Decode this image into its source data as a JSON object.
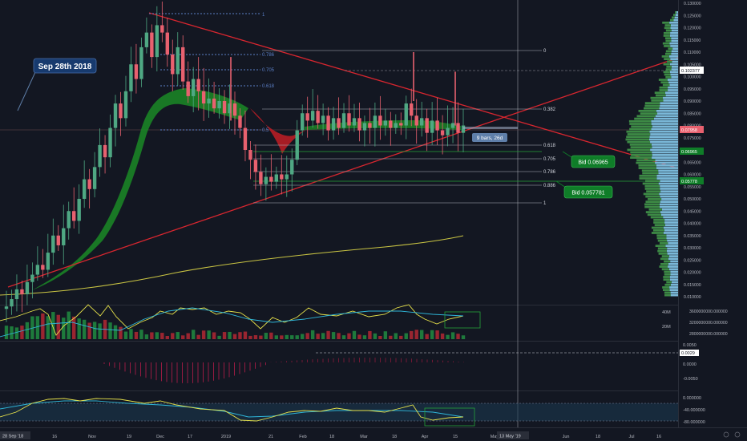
{
  "colors": {
    "background": "#131722",
    "up": "#4fa883",
    "down": "#e8616f",
    "trendline": "#d7262f",
    "fib": "#b2b5be",
    "fib_blue": "#5b7fc7",
    "ma_yellow": "#c9c443",
    "cloud_green": "#1b8a26",
    "cloud_red": "#b81d25",
    "volprofile_blue": "#7ab8d8",
    "volprofile_green": "#3d8a45",
    "label_green": "#0f7d28",
    "label_navy": "#173a6e",
    "label_steel": "#5f7fa9",
    "label_red": "#e8616f"
  },
  "annotations": {
    "date_callout": "Sep 28th 2018",
    "bars_label": "9 bars, 26d",
    "bid_upper": "Bid 0.06965",
    "bid_lower": "Bid 0.057781"
  },
  "fib_left": {
    "top": "1",
    "f786": "0.786",
    "f705": "0.705",
    "f618": "0.618",
    "f5": "0.5"
  },
  "fib_right": {
    "f0": "0",
    "f382": "0.382",
    "f618": "0.618",
    "f705": "0.705",
    "f786": "0.786",
    "f886": "0.886",
    "f1": "1"
  },
  "price_axis": {
    "ticks": [
      "0.130000",
      "0.125000",
      "0.120000",
      "0.115000",
      "0.110000",
      "0.105000",
      "0.100000",
      "0.095000",
      "0.090000",
      "0.085000",
      "0.080000",
      "0.075000",
      "0.070000",
      "0.065000",
      "0.060000",
      "0.055000",
      "0.050000",
      "0.045000",
      "0.040000",
      "0.035000",
      "0.030000",
      "0.025000",
      "0.020000",
      "0.015000",
      "0.010000"
    ],
    "badges": {
      "level1": "0.102377",
      "current": "0.07958",
      "bid1": "0.06965",
      "bid2": "0.05778"
    }
  },
  "volume_axis": {
    "left_ticks": [
      "40M",
      "20M"
    ],
    "right_ticks": [
      "3600000000.000000",
      "3200000000.000000",
      "2800000000.000000"
    ]
  },
  "macd_axis": {
    "ticks": [
      "0.0050",
      "0.0000",
      "-0.0050"
    ],
    "badge": "0.0029"
  },
  "osc_axis": {
    "ticks": [
      "0.000000",
      "-40.000000",
      "-80.000000"
    ]
  },
  "time_axis": {
    "ticks": [
      "16",
      "Nov",
      "19",
      "Dec",
      "17",
      "2019",
      "21",
      "Feb",
      "18",
      "Mar",
      "18",
      "Apr",
      "15",
      "May",
      "Jun",
      "18",
      "Jul",
      "16"
    ],
    "start_badge": "28 Sep '18",
    "cursor_badge": "13 May '19"
  },
  "chart_data": {
    "type": "candlestick",
    "ylim": [
      0.01,
      0.13
    ],
    "candle_pattern": [
      [
        0.005,
        0.006
      ],
      [
        0.006,
        0.009
      ],
      [
        0.009,
        0.013
      ],
      [
        0.013,
        0.011
      ],
      [
        0.011,
        0.016
      ],
      [
        0.016,
        0.019
      ],
      [
        0.019,
        0.023
      ],
      [
        0.023,
        0.021
      ],
      [
        0.021,
        0.028
      ],
      [
        0.028,
        0.035
      ],
      [
        0.035,
        0.031
      ],
      [
        0.031,
        0.038
      ],
      [
        0.038,
        0.045
      ],
      [
        0.045,
        0.041
      ],
      [
        0.041,
        0.05
      ],
      [
        0.05,
        0.058
      ],
      [
        0.058,
        0.054
      ],
      [
        0.054,
        0.063
      ],
      [
        0.063,
        0.072
      ],
      [
        0.072,
        0.067
      ],
      [
        0.067,
        0.079
      ],
      [
        0.079,
        0.089
      ],
      [
        0.089,
        0.083
      ],
      [
        0.083,
        0.094
      ],
      [
        0.094,
        0.105
      ],
      [
        0.105,
        0.099
      ],
      [
        0.099,
        0.112
      ],
      [
        0.112,
        0.118
      ],
      [
        0.118,
        0.108
      ],
      [
        0.108,
        0.121
      ],
      [
        0.121,
        0.118
      ],
      [
        0.118,
        0.109
      ],
      [
        0.109,
        0.101
      ],
      [
        0.101,
        0.112
      ],
      [
        0.112,
        0.098
      ],
      [
        0.098,
        0.092
      ],
      [
        0.092,
        0.099
      ],
      [
        0.099,
        0.094
      ],
      [
        0.094,
        0.089
      ],
      [
        0.089,
        0.091
      ],
      [
        0.091,
        0.087
      ],
      [
        0.087,
        0.09
      ],
      [
        0.09,
        0.085
      ],
      [
        0.085,
        0.089
      ],
      [
        0.089,
        0.084
      ],
      [
        0.084,
        0.079
      ],
      [
        0.079,
        0.07
      ],
      [
        0.07,
        0.066
      ],
      [
        0.066,
        0.061
      ],
      [
        0.061,
        0.056
      ],
      [
        0.056,
        0.059
      ],
      [
        0.059,
        0.057
      ],
      [
        0.057,
        0.06
      ],
      [
        0.06,
        0.058
      ],
      [
        0.058,
        0.06
      ],
      [
        0.06,
        0.066
      ],
      [
        0.066,
        0.078
      ],
      [
        0.078,
        0.085
      ],
      [
        0.085,
        0.082
      ],
      [
        0.082,
        0.086
      ],
      [
        0.086,
        0.081
      ],
      [
        0.081,
        0.084
      ],
      [
        0.084,
        0.078
      ],
      [
        0.078,
        0.083
      ],
      [
        0.083,
        0.079
      ],
      [
        0.079,
        0.085
      ],
      [
        0.085,
        0.08
      ],
      [
        0.08,
        0.083
      ],
      [
        0.083,
        0.078
      ],
      [
        0.078,
        0.081
      ],
      [
        0.081,
        0.079
      ],
      [
        0.079,
        0.084
      ],
      [
        0.084,
        0.08
      ],
      [
        0.08,
        0.082
      ],
      [
        0.082,
        0.079
      ],
      [
        0.079,
        0.081
      ],
      [
        0.081,
        0.08
      ],
      [
        0.08,
        0.089
      ],
      [
        0.089,
        0.084
      ],
      [
        0.084,
        0.08
      ],
      [
        0.08,
        0.083
      ],
      [
        0.083,
        0.077
      ],
      [
        0.077,
        0.082
      ],
      [
        0.082,
        0.078
      ],
      [
        0.078,
        0.076
      ],
      [
        0.076,
        0.079
      ],
      [
        0.079,
        0.081
      ],
      [
        0.081,
        0.077
      ],
      [
        0.077,
        0.08
      ]
    ]
  }
}
